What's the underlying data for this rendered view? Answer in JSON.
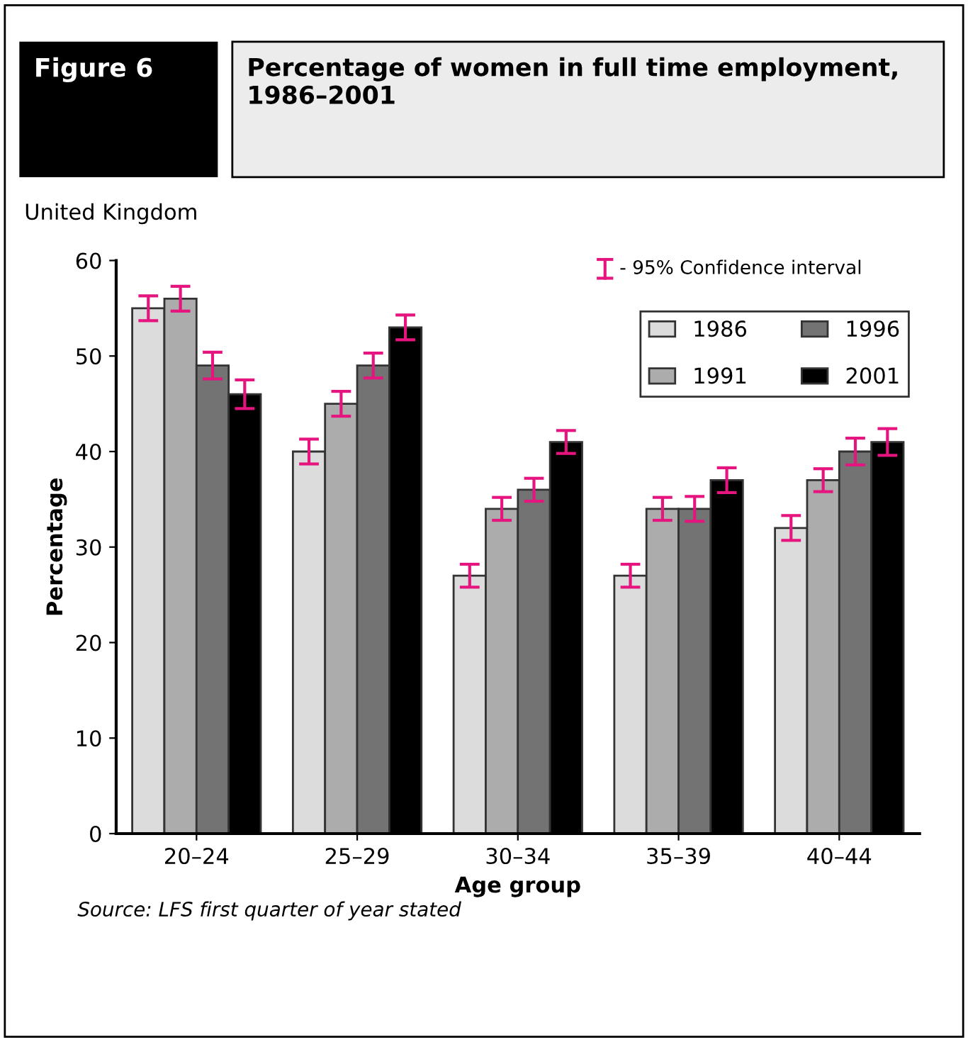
{
  "chart_data": {
    "type": "bar",
    "title": "Percentage of women in full time employment, 1986–2001",
    "subtitle": "United Kingdom",
    "annotations": [
      "Figure 6",
      "- 95% Confidence interval",
      "Source: LFS first quarter of year stated"
    ],
    "xlabel": "Age group",
    "ylabel": "Percentage",
    "categories": [
      "20–24",
      "25–29",
      "30–34",
      "35–39",
      "40–44"
    ],
    "series": [
      {
        "name": "1986",
        "color": "#dcdcdc",
        "values": [
          55,
          40,
          27,
          27,
          32
        ],
        "errors": [
          1.3,
          1.3,
          1.2,
          1.2,
          1.3
        ]
      },
      {
        "name": "1991",
        "color": "#acacac",
        "values": [
          56,
          45,
          34,
          34,
          37
        ],
        "errors": [
          1.3,
          1.3,
          1.2,
          1.2,
          1.2
        ]
      },
      {
        "name": "1996",
        "color": "#737373",
        "values": [
          49,
          49,
          36,
          34,
          40
        ],
        "errors": [
          1.4,
          1.3,
          1.2,
          1.3,
          1.4
        ]
      },
      {
        "name": "2001",
        "color": "#000000",
        "values": [
          46,
          53,
          41,
          37,
          41
        ],
        "errors": [
          1.5,
          1.3,
          1.2,
          1.3,
          1.4
        ]
      }
    ],
    "ylim": [
      0,
      60
    ],
    "yticks": [
      0,
      10,
      20,
      30,
      40,
      50,
      60
    ],
    "grid": false,
    "legend": "top right"
  }
}
